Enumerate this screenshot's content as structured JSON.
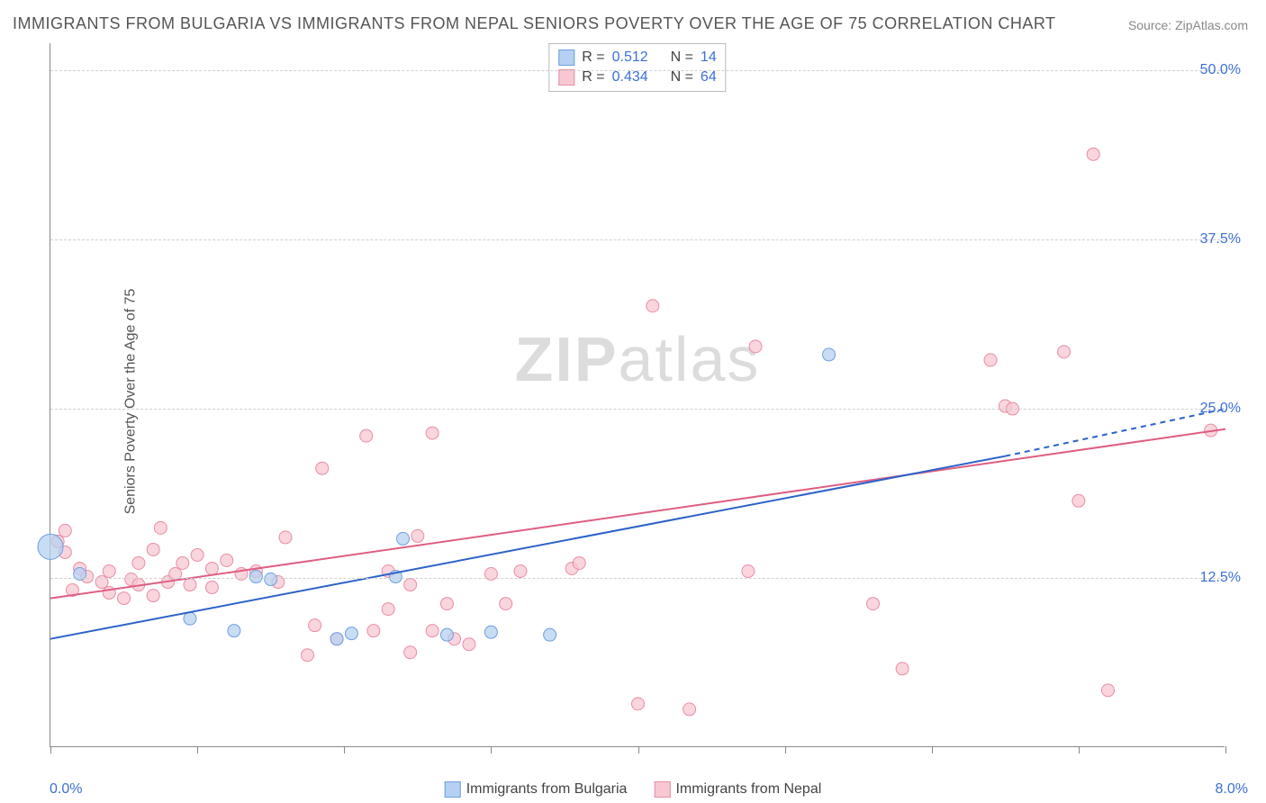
{
  "title": "IMMIGRANTS FROM BULGARIA VS IMMIGRANTS FROM NEPAL SENIORS POVERTY OVER THE AGE OF 75 CORRELATION CHART",
  "source": "Source: ZipAtlas.com",
  "ylabel": "Seniors Poverty Over the Age of 75",
  "watermark_bold": "ZIP",
  "watermark_light": "atlas",
  "chart": {
    "type": "scatter",
    "background_color": "#ffffff",
    "grid_color": "#d0d0d0",
    "axis_color": "#888888",
    "tick_label_color": "#3b6fd6",
    "title_fontsize": 18,
    "label_fontsize": 16,
    "xlim": [
      0,
      8
    ],
    "ylim": [
      0,
      52
    ],
    "x_tick_positions": [
      0,
      1,
      2,
      3,
      4,
      5,
      6,
      7,
      8
    ],
    "x_tick_labels": {
      "min": "0.0%",
      "max": "8.0%"
    },
    "y_gridlines": [
      12.5,
      25.0,
      37.5,
      50.0
    ],
    "y_tick_labels": [
      "12.5%",
      "25.0%",
      "37.5%",
      "50.0%"
    ],
    "series": [
      {
        "name": "Immigrants from Bulgaria",
        "color_fill": "#b5d0f0",
        "color_stroke": "#6f9fe0",
        "marker_radius": 7,
        "R": "0.512",
        "N": "14",
        "regression": {
          "x1": 0.0,
          "y1": 8.0,
          "x2": 6.5,
          "y2": 21.5,
          "extrap_x2": 8.0,
          "extrap_y2": 25.0,
          "color": "#2d62c8",
          "width": 2
        },
        "points": [
          {
            "x": 0.0,
            "y": 14.8,
            "r": 14
          },
          {
            "x": 0.2,
            "y": 12.8
          },
          {
            "x": 0.95,
            "y": 9.5
          },
          {
            "x": 1.25,
            "y": 8.6
          },
          {
            "x": 1.4,
            "y": 12.6
          },
          {
            "x": 1.5,
            "y": 12.4
          },
          {
            "x": 1.95,
            "y": 8.0
          },
          {
            "x": 2.05,
            "y": 8.4
          },
          {
            "x": 2.35,
            "y": 12.6
          },
          {
            "x": 2.4,
            "y": 15.4
          },
          {
            "x": 2.7,
            "y": 8.3
          },
          {
            "x": 3.0,
            "y": 8.5
          },
          {
            "x": 3.4,
            "y": 8.3
          },
          {
            "x": 5.3,
            "y": 29.0
          }
        ]
      },
      {
        "name": "Immigrants from Nepal",
        "color_fill": "#f7c7d2",
        "color_stroke": "#e98da6",
        "marker_radius": 7,
        "R": "0.434",
        "N": "64",
        "regression": {
          "x1": 0.0,
          "y1": 11.0,
          "x2": 8.0,
          "y2": 23.5,
          "color": "#de5e82",
          "width": 2
        },
        "points": [
          {
            "x": 0.05,
            "y": 15.2
          },
          {
            "x": 0.1,
            "y": 16.0
          },
          {
            "x": 0.1,
            "y": 14.4
          },
          {
            "x": 0.15,
            "y": 11.6
          },
          {
            "x": 0.2,
            "y": 13.2
          },
          {
            "x": 0.25,
            "y": 12.6
          },
          {
            "x": 0.35,
            "y": 12.2
          },
          {
            "x": 0.4,
            "y": 13.0
          },
          {
            "x": 0.4,
            "y": 11.4
          },
          {
            "x": 0.5,
            "y": 11.0
          },
          {
            "x": 0.55,
            "y": 12.4
          },
          {
            "x": 0.6,
            "y": 12.0
          },
          {
            "x": 0.6,
            "y": 13.6
          },
          {
            "x": 0.7,
            "y": 14.6
          },
          {
            "x": 0.7,
            "y": 11.2
          },
          {
            "x": 0.75,
            "y": 16.2
          },
          {
            "x": 0.8,
            "y": 12.2
          },
          {
            "x": 0.85,
            "y": 12.8
          },
          {
            "x": 0.9,
            "y": 13.6
          },
          {
            "x": 0.95,
            "y": 12.0
          },
          {
            "x": 1.0,
            "y": 14.2
          },
          {
            "x": 1.1,
            "y": 13.2
          },
          {
            "x": 1.1,
            "y": 11.8
          },
          {
            "x": 1.2,
            "y": 13.8
          },
          {
            "x": 1.3,
            "y": 12.8
          },
          {
            "x": 1.4,
            "y": 13.0
          },
          {
            "x": 1.55,
            "y": 12.2
          },
          {
            "x": 1.6,
            "y": 15.5
          },
          {
            "x": 1.75,
            "y": 6.8
          },
          {
            "x": 1.8,
            "y": 9.0
          },
          {
            "x": 1.85,
            "y": 20.6
          },
          {
            "x": 1.95,
            "y": 8.0
          },
          {
            "x": 2.15,
            "y": 23.0
          },
          {
            "x": 2.2,
            "y": 8.6
          },
          {
            "x": 2.3,
            "y": 13.0
          },
          {
            "x": 2.3,
            "y": 10.2
          },
          {
            "x": 2.45,
            "y": 12.0
          },
          {
            "x": 2.45,
            "y": 7.0
          },
          {
            "x": 2.5,
            "y": 15.6
          },
          {
            "x": 2.6,
            "y": 23.2
          },
          {
            "x": 2.6,
            "y": 8.6
          },
          {
            "x": 2.7,
            "y": 10.6
          },
          {
            "x": 2.75,
            "y": 8.0
          },
          {
            "x": 2.85,
            "y": 7.6
          },
          {
            "x": 3.0,
            "y": 12.8
          },
          {
            "x": 3.1,
            "y": 10.6
          },
          {
            "x": 3.2,
            "y": 13.0
          },
          {
            "x": 3.55,
            "y": 13.2
          },
          {
            "x": 3.6,
            "y": 13.6
          },
          {
            "x": 4.0,
            "y": 3.2
          },
          {
            "x": 4.1,
            "y": 32.6
          },
          {
            "x": 4.35,
            "y": 2.8
          },
          {
            "x": 4.75,
            "y": 13.0
          },
          {
            "x": 4.8,
            "y": 29.6
          },
          {
            "x": 5.6,
            "y": 10.6
          },
          {
            "x": 5.8,
            "y": 5.8
          },
          {
            "x": 6.4,
            "y": 28.6
          },
          {
            "x": 6.5,
            "y": 25.2
          },
          {
            "x": 6.9,
            "y": 29.2
          },
          {
            "x": 7.0,
            "y": 18.2
          },
          {
            "x": 7.1,
            "y": 43.8
          },
          {
            "x": 7.2,
            "y": 4.2
          },
          {
            "x": 7.9,
            "y": 23.4
          },
          {
            "x": 6.55,
            "y": 25.0
          }
        ]
      }
    ]
  },
  "stats_legend": {
    "label_R": "R  =",
    "label_N": "N  ="
  },
  "bottom_legend": {
    "items": [
      "Immigrants from Bulgaria",
      "Immigrants from Nepal"
    ]
  }
}
